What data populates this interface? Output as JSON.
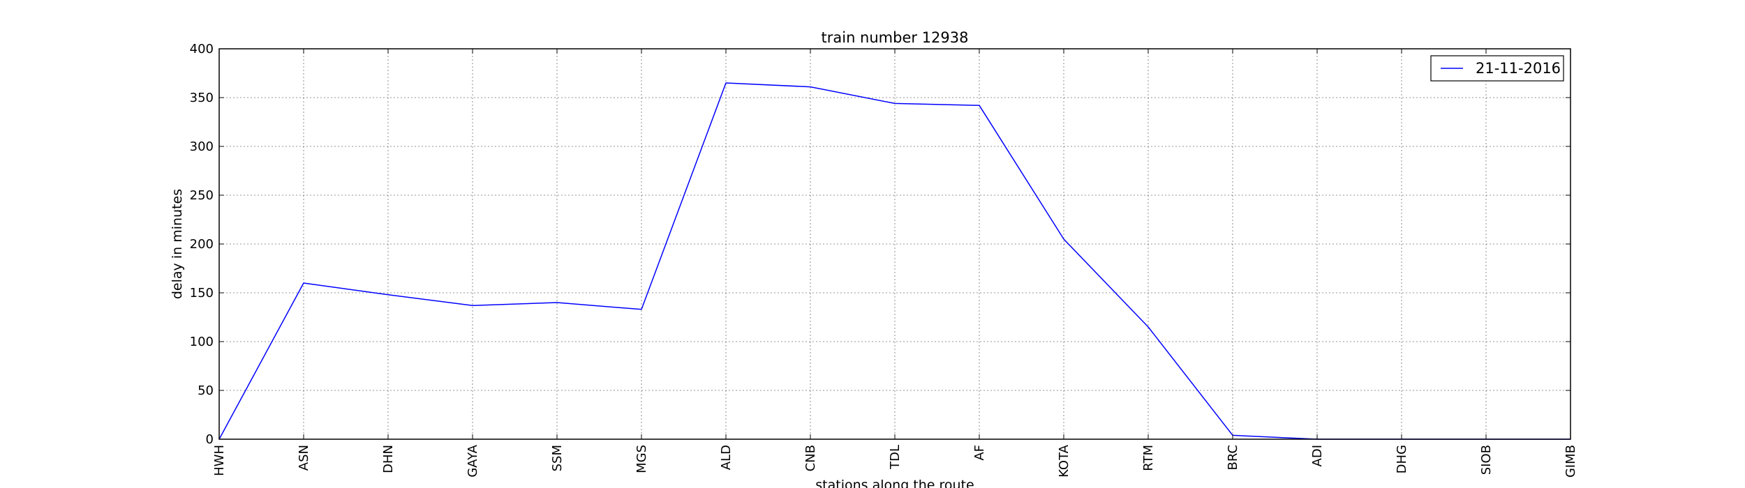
{
  "chart_data": {
    "type": "line",
    "title": "train number 12938",
    "xlabel": "stations along the route",
    "ylabel": "delay in minutes",
    "categories": [
      "HWH",
      "ASN",
      "DHN",
      "GAYA",
      "SSM",
      "MGS",
      "ALD",
      "CNB",
      "TDL",
      "AF",
      "KOTA",
      "RTM",
      "BRC",
      "ADI",
      "DHG",
      "SIOB",
      "GIMB"
    ],
    "series": [
      {
        "name": "21-11-2016",
        "color": "#0000ff",
        "values": [
          0,
          160,
          148,
          137,
          140,
          133,
          365,
          361,
          344,
          342,
          205,
          115,
          4,
          0,
          0,
          0,
          0
        ]
      }
    ],
    "ylim": [
      0,
      400
    ],
    "yticks": [
      0,
      50,
      100,
      150,
      200,
      250,
      300,
      350,
      400
    ],
    "grid": true,
    "legend_position": "top-right"
  }
}
